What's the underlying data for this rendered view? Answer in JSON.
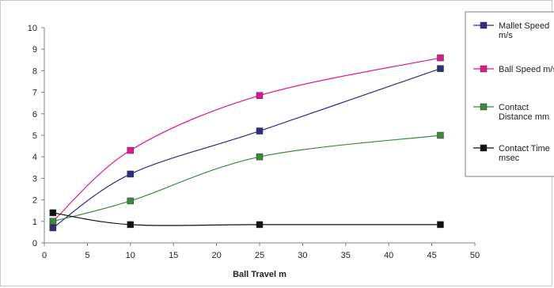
{
  "chart_data": {
    "type": "line",
    "title": "",
    "xlabel": "Ball Travel m",
    "ylabel": "",
    "xlim": [
      0,
      50
    ],
    "ylim": [
      0,
      10
    ],
    "xticks": [
      0,
      5,
      10,
      15,
      20,
      25,
      30,
      35,
      40,
      45,
      50
    ],
    "yticks": [
      0,
      1,
      2,
      3,
      4,
      5,
      6,
      7,
      8,
      9,
      10
    ],
    "grid": false,
    "smooth": true,
    "legend_position": "right",
    "series": [
      {
        "name": "Mallet Speed m/s",
        "legend_lines": [
          "Mallet Speed",
          "m/s"
        ],
        "color": "#2e2e7a",
        "x": [
          1,
          10,
          25,
          46
        ],
        "y": [
          0.7,
          3.2,
          5.2,
          8.1
        ]
      },
      {
        "name": "Ball Speed m/s",
        "legend_lines": [
          "Ball Speed m/s"
        ],
        "color": "#e0188c",
        "x": [
          1,
          10,
          25,
          46
        ],
        "y": [
          1.0,
          4.3,
          6.85,
          8.6
        ]
      },
      {
        "name": "Contact Distance mm",
        "legend_lines": [
          "Contact",
          "Distance mm"
        ],
        "color": "#3a8a3a",
        "x": [
          1,
          10,
          25,
          46
        ],
        "y": [
          1.0,
          1.95,
          4.0,
          5.0
        ]
      },
      {
        "name": "Contact Time msec",
        "legend_lines": [
          "Contact Time",
          "msec"
        ],
        "color": "#111111",
        "x": [
          1,
          10,
          25,
          46
        ],
        "y": [
          1.4,
          0.85,
          0.85,
          0.85
        ]
      }
    ]
  }
}
